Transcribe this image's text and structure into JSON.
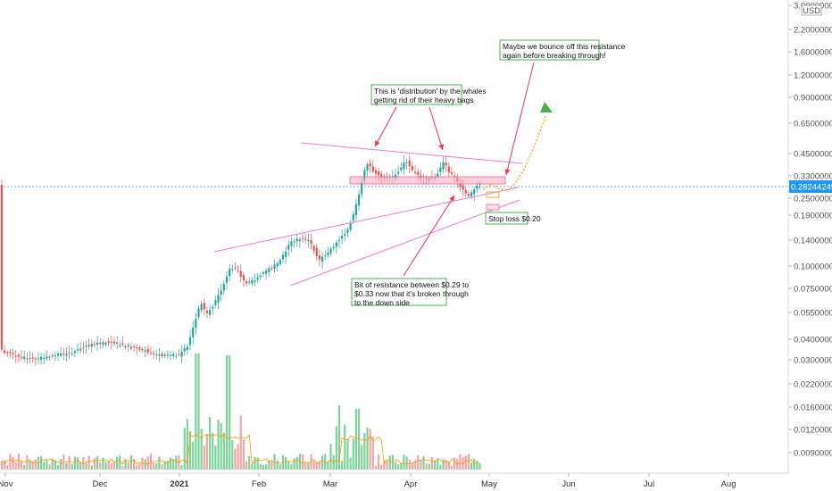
{
  "chart_data": {
    "type": "candlestick",
    "price_scale": "log",
    "currency_label": "USD",
    "current_price": "0.28244249",
    "y_ticks": [
      "3.00000000",
      "2.20000000",
      "1.60000000",
      "1.20000000",
      "0.90000000",
      "0.65000000",
      "0.45000000",
      "0.33000000",
      "0.25000000",
      "0.19000000",
      "0.14000000",
      "0.10000000",
      "0.07500000",
      "0.05500000",
      "0.04000000",
      "0.03000000",
      "0.02200000",
      "0.01600000",
      "0.01200000",
      "0.00900000"
    ],
    "x_ticks": [
      {
        "label": "Nov",
        "bold": false
      },
      {
        "label": "Dec",
        "bold": false
      },
      {
        "label": "2021",
        "bold": true
      },
      {
        "label": "Feb",
        "bold": false
      },
      {
        "label": "Mar",
        "bold": false
      },
      {
        "label": "Apr",
        "bold": false
      },
      {
        "label": "May",
        "bold": false
      },
      {
        "label": "Jun",
        "bold": false
      },
      {
        "label": "Jul",
        "bold": false
      },
      {
        "label": "Aug",
        "bold": false
      }
    ],
    "candles": [
      {
        "date": "2020-10-25",
        "close": 0.031
      },
      {
        "date": "2020-11-01",
        "close": 0.03
      },
      {
        "date": "2020-11-08",
        "close": 0.031
      },
      {
        "date": "2020-11-15",
        "close": 0.032
      },
      {
        "date": "2020-11-22",
        "close": 0.034
      },
      {
        "date": "2020-11-29",
        "close": 0.033
      },
      {
        "date": "2020-12-06",
        "close": 0.035
      },
      {
        "date": "2020-12-13",
        "close": 0.034
      },
      {
        "date": "2020-12-20",
        "close": 0.032
      },
      {
        "date": "2020-12-27",
        "close": 0.031
      },
      {
        "date": "2021-01-03",
        "close": 0.031
      },
      {
        "date": "2021-01-10",
        "close": 0.036
      },
      {
        "date": "2021-01-17",
        "close": 0.055
      },
      {
        "date": "2021-01-24",
        "close": 0.095
      },
      {
        "date": "2021-01-31",
        "close": 0.085
      },
      {
        "date": "2021-02-07",
        "close": 0.092
      },
      {
        "date": "2021-02-14",
        "close": 0.12
      },
      {
        "date": "2021-02-21",
        "close": 0.128
      },
      {
        "date": "2021-02-28",
        "close": 0.115
      },
      {
        "date": "2021-03-07",
        "close": 0.125
      },
      {
        "date": "2021-03-14",
        "close": 0.36
      },
      {
        "date": "2021-03-21",
        "close": 0.33
      },
      {
        "date": "2021-03-28",
        "close": 0.33
      },
      {
        "date": "2021-04-04",
        "close": 0.36
      },
      {
        "date": "2021-04-11",
        "close": 0.32
      },
      {
        "date": "2021-04-18",
        "close": 0.27
      },
      {
        "date": "2021-04-25",
        "close": 0.282
      }
    ],
    "annotations": {
      "distribution": "This is 'distribution' by the whales getting rid of their heavy bags",
      "distribution_lines": [
        "This is 'distribution' by the whales",
        "getting rid of their heavy bags"
      ],
      "bounce_lines": [
        "Maybe we bounce off this resistance",
        "again before breaking through!"
      ],
      "resistance_lines": [
        "Bit of resistance between $0.29 to",
        "$0.33 now that it's broken through",
        "to the down side"
      ],
      "stop_loss": "Stop loss $0.20"
    },
    "resistance_zone": [
      0.29,
      0.33
    ],
    "stop_loss_level": 0.2,
    "colors": {
      "up": "#26a69a",
      "down": "#ef5350",
      "trend": "#e87fd1",
      "resistance": "#f7a8bd",
      "arrow": "#f23645",
      "projection": "#ff9800",
      "price_line": "#2196f3",
      "volume_ma": "#ff9800"
    }
  }
}
